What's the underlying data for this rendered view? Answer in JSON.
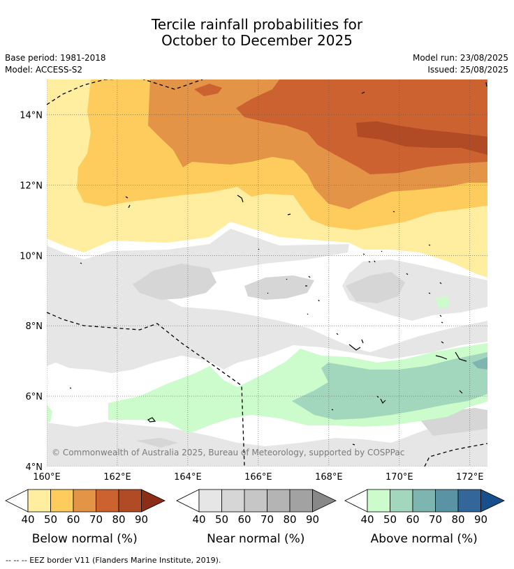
{
  "title_line1": "Tercile rainfall probabilities for",
  "title_line2": "October to December 2025",
  "meta": {
    "base_period": "Base period: 1981-2018",
    "model": "Model: ACCESS-S2",
    "model_run": "Model run: 23/08/2025",
    "issued": "Issued: 25/08/2025"
  },
  "axes": {
    "lat_labels": [
      "14°N",
      "12°N",
      "10°N",
      "8°N",
      "6°N",
      "4°N"
    ],
    "lon_labels": [
      "160°E",
      "162°E",
      "164°E",
      "166°E",
      "168°E",
      "170°E",
      "172°E"
    ],
    "lat_values": [
      14,
      12,
      10,
      8,
      6,
      4
    ],
    "lon_values": [
      160,
      162,
      164,
      166,
      168,
      170,
      172
    ],
    "lat_range": [
      4,
      15
    ],
    "lon_range": [
      160,
      172.5
    ],
    "grid": true
  },
  "copyright": "© Commonwealth of Australia 2025, Bureau of Meteorology, supported by COSPPac",
  "colorbars": [
    {
      "label": "Below normal (%)",
      "ticks": [
        "40",
        "50",
        "60",
        "70",
        "80",
        "90"
      ],
      "colors": [
        "#ffeda0",
        "#fecc5c",
        "#e39446",
        "#cc6230",
        "#b14b26",
        "#8c2d18"
      ]
    },
    {
      "label": "Near normal (%)",
      "ticks": [
        "40",
        "50",
        "60",
        "70",
        "80",
        "90"
      ],
      "colors": [
        "#e6e6e6",
        "#d6d6d6",
        "#c6c6c6",
        "#b4b4b4",
        "#a2a2a2",
        "#888888"
      ]
    },
    {
      "label": "Above normal (%)",
      "ticks": [
        "40",
        "50",
        "60",
        "70",
        "80",
        "90"
      ],
      "colors": [
        "#ccfccc",
        "#a2d6bd",
        "#7fb5b1",
        "#5a93a4",
        "#336699",
        "#164f8c"
      ]
    }
  ],
  "footer": "--  --  -- EEZ border V11 (Flanders Marine Institute, 2019).",
  "region_colors": {
    "below_40": "#ffeda0",
    "below_50": "#fecc5c",
    "below_60": "#e39446",
    "below_70": "#cc6230",
    "below_80": "#b14b26",
    "near_40": "#e6e6e6",
    "near_50": "#d6d6d6",
    "above_40": "#ccfccc",
    "above_50": "#a2d6bd",
    "above_60": "#7fb5b1"
  }
}
